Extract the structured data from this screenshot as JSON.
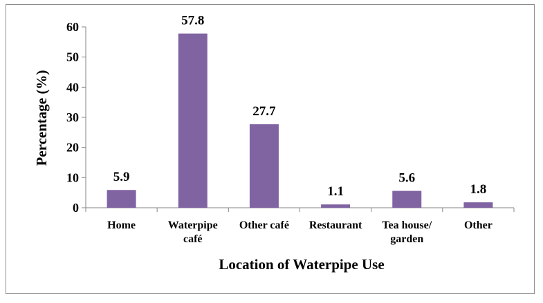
{
  "chart_data": {
    "type": "bar",
    "categories": [
      [
        "Home"
      ],
      [
        "Waterpipe",
        "café"
      ],
      [
        "Other café"
      ],
      [
        "Restaurant"
      ],
      [
        "Tea house/",
        "garden"
      ],
      [
        "Other"
      ]
    ],
    "values": [
      5.9,
      57.8,
      27.7,
      1.1,
      5.6,
      1.8
    ],
    "data_labels": [
      "5.9",
      "57.8",
      "27.7",
      "1.1",
      "5.6",
      "1.8"
    ],
    "title": "",
    "xlabel": "Location of Waterpipe Use",
    "ylabel": "Percentage (%)",
    "ylim": [
      0,
      60
    ],
    "yticks": [
      0,
      10,
      20,
      30,
      40,
      50,
      60
    ],
    "bar_color": "#8064A2",
    "grid": false,
    "legend": "none"
  }
}
